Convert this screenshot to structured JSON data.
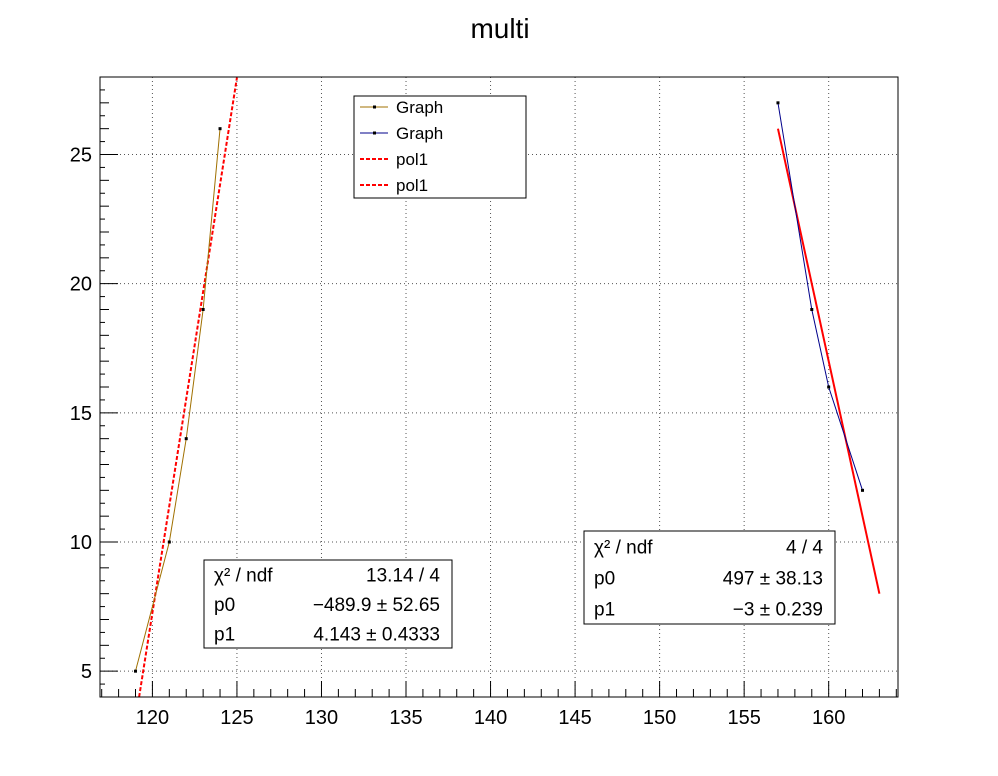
{
  "chart_data": {
    "type": "scatter",
    "title": "multi",
    "xlabel": "",
    "ylabel": "",
    "xlim": [
      116.9,
      164.1
    ],
    "ylim": [
      4.0,
      28.0
    ],
    "grid": true,
    "x_ticks": [
      120,
      125,
      130,
      135,
      140,
      145,
      150,
      155,
      160
    ],
    "y_ticks": [
      5,
      10,
      15,
      20,
      25
    ],
    "x_tick_labels": [
      "120",
      "125",
      "130",
      "135",
      "140",
      "145",
      "150",
      "155",
      "160"
    ],
    "y_tick_labels": [
      "5",
      "10",
      "15",
      "20",
      "25"
    ],
    "series": [
      {
        "name": "Graph",
        "kind": "graph",
        "color": "#a07000",
        "x": [
          119,
          121,
          122,
          123,
          124
        ],
        "y": [
          5,
          10,
          14,
          19,
          26
        ]
      },
      {
        "name": "Graph",
        "kind": "graph",
        "color": "#00008b",
        "x": [
          157,
          159,
          160,
          162
        ],
        "y": [
          27,
          19,
          16,
          12
        ]
      }
    ],
    "fits": [
      {
        "name": "pol1",
        "kind": "fit",
        "color": "#ff0000",
        "style": "dashed",
        "p0": -489.9,
        "p1": 4.143,
        "xrange": [
          119,
          125
        ]
      },
      {
        "name": "pol1",
        "kind": "fit",
        "color": "#ff0000",
        "style": "solid",
        "p0": 497,
        "p1": -3,
        "xrange": [
          157,
          163
        ]
      }
    ],
    "legend": {
      "placement": "top-center",
      "entries": [
        "Graph",
        "Graph",
        "pol1",
        "pol1"
      ]
    },
    "stat_boxes": [
      {
        "rows": [
          {
            "label": "χ² / ndf",
            "value": "13.14 / 4"
          },
          {
            "label": "p0",
            "value": "−489.9 ± 52.65"
          },
          {
            "label": "p1",
            "value": "4.143 ± 0.4333"
          }
        ]
      },
      {
        "rows": [
          {
            "label": "χ² / ndf",
            "value": "4 / 4"
          },
          {
            "label": "p0",
            "value": "497 ± 38.13"
          },
          {
            "label": "p1",
            "value": "−3 ± 0.239"
          }
        ]
      }
    ]
  }
}
